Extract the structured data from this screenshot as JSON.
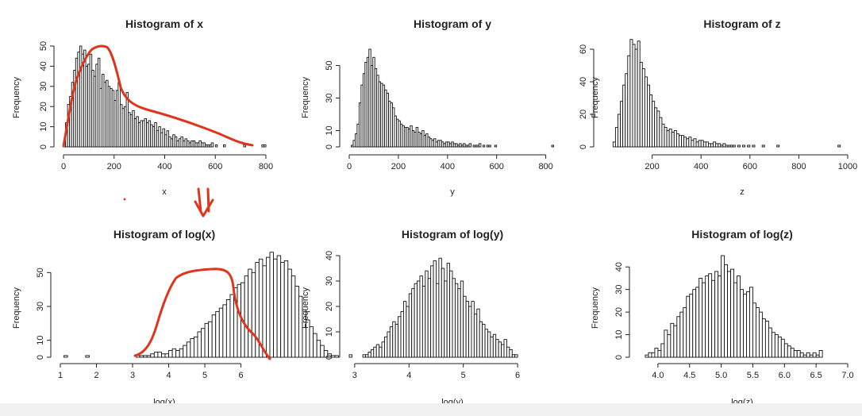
{
  "chart_data": [
    {
      "type": "bar",
      "title": "Histogram of x",
      "xlabel": "x",
      "ylabel": "Frequency",
      "xlim": [
        0,
        800
      ],
      "ylim": [
        0,
        50
      ],
      "xticks": [
        0,
        200,
        400,
        600,
        800
      ],
      "yticks": [
        0,
        10,
        20,
        30,
        40,
        50
      ],
      "bin_start": 0,
      "bin_width": 8,
      "values": [
        2,
        12,
        21,
        25,
        32,
        38,
        44,
        47,
        50,
        46,
        48,
        40,
        41,
        46,
        38,
        35,
        41,
        44,
        29,
        36,
        32,
        33,
        30,
        29,
        28,
        23,
        28,
        32,
        21,
        19,
        20,
        27,
        17,
        16,
        18,
        14,
        15,
        12,
        13,
        13,
        14,
        12,
        13,
        11,
        10,
        12,
        8,
        10,
        7,
        9,
        6,
        8,
        5,
        4,
        6,
        5,
        3,
        4,
        5,
        3,
        4,
        3,
        2,
        3,
        3,
        2,
        2,
        3,
        2,
        2,
        1,
        1,
        1,
        2,
        0,
        1,
        0,
        0,
        0,
        1,
        0,
        0,
        0,
        0,
        0,
        0,
        0,
        0,
        0,
        1,
        0,
        0,
        0,
        0,
        0,
        0,
        0,
        0,
        1,
        1
      ]
    },
    {
      "type": "bar",
      "title": "Histogram of y",
      "xlabel": "y",
      "ylabel": "Frequency",
      "xlim": [
        0,
        840
      ],
      "ylim": [
        0,
        60
      ],
      "xticks": [
        0,
        200,
        400,
        600,
        800
      ],
      "yticks": [
        0,
        10,
        30,
        50
      ],
      "bin_start": 0,
      "bin_width": 8,
      "values": [
        0,
        1,
        4,
        8,
        14,
        27,
        38,
        45,
        52,
        55,
        60,
        50,
        55,
        48,
        44,
        40,
        39,
        38,
        35,
        33,
        28,
        27,
        24,
        19,
        17,
        16,
        14,
        13,
        12,
        12,
        11,
        13,
        10,
        9,
        12,
        9,
        8,
        10,
        7,
        8,
        6,
        5,
        4,
        5,
        3,
        4,
        4,
        3,
        2,
        3,
        3,
        2,
        3,
        2,
        2,
        1,
        2,
        1,
        2,
        1,
        1,
        2,
        0,
        1,
        1,
        1,
        2,
        0,
        1,
        0,
        1,
        1,
        0,
        0,
        1,
        0,
        0,
        0,
        0,
        0,
        0,
        0,
        0,
        0,
        0,
        0,
        0,
        0,
        0,
        0,
        0,
        0,
        0,
        0,
        0,
        0,
        0,
        0,
        0,
        0,
        0,
        0,
        0,
        1
      ]
    },
    {
      "type": "bar",
      "title": "Histogram of z",
      "xlabel": "z",
      "ylabel": "Frequency",
      "xlim": [
        0,
        1000
      ],
      "ylim": [
        0,
        60
      ],
      "xticks": [
        200,
        400,
        600,
        800,
        1000
      ],
      "yticks": [
        0,
        20,
        40,
        60
      ],
      "bin_start": 40,
      "bin_width": 10,
      "values": [
        3,
        12,
        20,
        28,
        38,
        45,
        56,
        66,
        63,
        60,
        65,
        52,
        48,
        43,
        38,
        32,
        28,
        24,
        22,
        18,
        14,
        12,
        10,
        11,
        9,
        10,
        8,
        7,
        7,
        6,
        5,
        6,
        4,
        5,
        3,
        4,
        4,
        3,
        3,
        2,
        2,
        3,
        2,
        2,
        1,
        2,
        1,
        1,
        1,
        1,
        0,
        1,
        0,
        1,
        0,
        1,
        0,
        1,
        0,
        0,
        0,
        1,
        0,
        0,
        0,
        0,
        0,
        1,
        0,
        0,
        0,
        0,
        0,
        0,
        0,
        0,
        0,
        0,
        0,
        0,
        0,
        0,
        0,
        0,
        0,
        0,
        0,
        0,
        0,
        0,
        0,
        0,
        1
      ]
    },
    {
      "type": "bar",
      "title": "Histogram of log(x)",
      "xlabel": "log(x)",
      "ylabel": "Frequency",
      "xlim": [
        1,
        6.8
      ],
      "ylim": [
        0,
        60
      ],
      "xticks": [
        1,
        2,
        3,
        4,
        5,
        6
      ],
      "yticks": [
        0,
        10,
        30,
        50
      ],
      "bin_start": 1.1,
      "bin_width": 0.1,
      "values": [
        1,
        0,
        0,
        0,
        0,
        0,
        1,
        0,
        0,
        0,
        0,
        0,
        0,
        0,
        0,
        0,
        0,
        0,
        0,
        0,
        1,
        1,
        1,
        1,
        2,
        3,
        3,
        2,
        2,
        4,
        5,
        4,
        5,
        7,
        9,
        11,
        12,
        15,
        17,
        20,
        21,
        25,
        27,
        29,
        31,
        34,
        37,
        41,
        43,
        44,
        48,
        52,
        50,
        56,
        58,
        54,
        59,
        62,
        58,
        60,
        56,
        57,
        52,
        48,
        42,
        36,
        28,
        22,
        18,
        14,
        10,
        7,
        4,
        2,
        1,
        1
      ]
    },
    {
      "type": "bar",
      "title": "Histogram of log(y)",
      "xlabel": "log(y)",
      "ylabel": "Frequency",
      "xlim": [
        2.9,
        6.7
      ],
      "ylim": [
        0,
        40
      ],
      "xticks": [
        3,
        4,
        5,
        6
      ],
      "yticks": [
        0,
        10,
        20,
        30,
        40
      ],
      "bin_start": 2.9,
      "bin_width": 0.05,
      "values": [
        1,
        0,
        0,
        0,
        0,
        1,
        1,
        2,
        3,
        4,
        5,
        4,
        6,
        8,
        10,
        12,
        14,
        13,
        16,
        18,
        22,
        20,
        25,
        27,
        29,
        30,
        32,
        28,
        34,
        31,
        36,
        38,
        29,
        39,
        35,
        30,
        37,
        34,
        31,
        29,
        27,
        30,
        24,
        22,
        20,
        22,
        17,
        19,
        14,
        13,
        11,
        10,
        8,
        9,
        7,
        6,
        5,
        7,
        4,
        3,
        1,
        1
      ]
    },
    {
      "type": "bar",
      "title": "Histogram of log(z)",
      "xlabel": "log(z)",
      "ylabel": "Frequency",
      "xlim": [
        3.7,
        7.0
      ],
      "ylim": [
        0,
        45
      ],
      "xticks": [
        4.0,
        4.5,
        5.0,
        5.5,
        6.0,
        6.5,
        7.0
      ],
      "yticks": [
        0,
        10,
        20,
        30,
        40
      ],
      "bin_start": 3.8,
      "bin_width": 0.05,
      "values": [
        1,
        2,
        2,
        4,
        3,
        6,
        12,
        10,
        15,
        14,
        18,
        20,
        22,
        27,
        28,
        30,
        31,
        35,
        33,
        36,
        37,
        34,
        38,
        36,
        45,
        41,
        38,
        39,
        33,
        36,
        30,
        28,
        29,
        31,
        24,
        22,
        20,
        17,
        16,
        13,
        11,
        10,
        9,
        8,
        6,
        5,
        4,
        3,
        3,
        2,
        1,
        2,
        1,
        2,
        1,
        3
      ]
    }
  ]
}
